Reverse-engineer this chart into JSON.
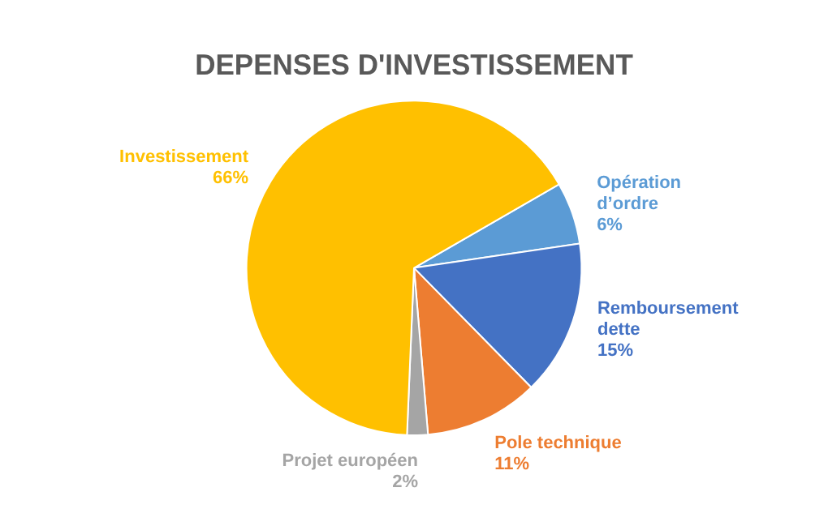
{
  "chart_data": {
    "type": "pie",
    "title": "DEPENSES D'INVESTISSEMENT",
    "categories": [
      "Opération d’ordre",
      "Remboursement dette",
      "Pole technique",
      "Projet européen",
      "Investissement"
    ],
    "values": [
      6,
      15,
      11,
      2,
      66
    ],
    "value_labels": [
      "6%",
      "15%",
      "11%",
      "2%",
      "66%"
    ],
    "colors": [
      "#5b9bd5",
      "#4472c4",
      "#ed7d31",
      "#a5a5a5",
      "#ffc000"
    ],
    "legend": false
  }
}
